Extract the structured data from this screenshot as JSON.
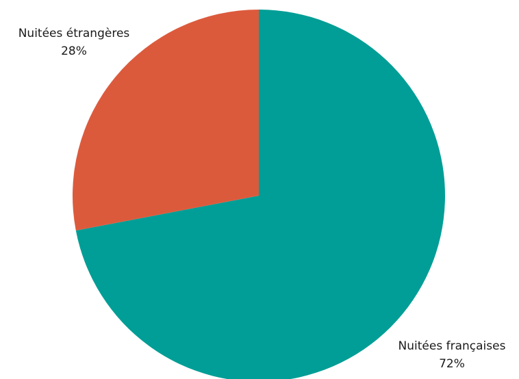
{
  "chart_data": {
    "type": "pie",
    "title": "",
    "start": "top",
    "direction": "clockwise",
    "slices": [
      {
        "label": "Nuitées françaises",
        "value": 72,
        "value_label": "72%",
        "color": "#009E96"
      },
      {
        "label": "Nuitées étrangères",
        "value": 28,
        "value_label": "28%",
        "color": "#DC5A3C"
      }
    ]
  }
}
